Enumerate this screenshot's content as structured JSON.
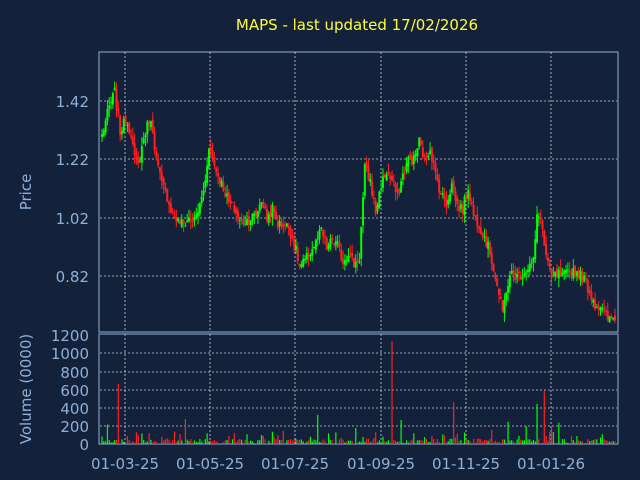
{
  "chart_data": [
    {
      "type": "candlestick",
      "title": "MAPS - last updated 17/02/2026",
      "ylabel": "Price",
      "ylim": [
        0.68,
        1.59
      ],
      "yticks": [
        "1.42",
        "1.22",
        "1.02",
        "0.82"
      ],
      "xticks": [
        "01-03-25",
        "01-05-25",
        "01-07-25",
        "01-09-25",
        "01-11-25",
        "01-01-26"
      ],
      "grid": true,
      "anchors": [
        [
          0,
          1.32
        ],
        [
          4,
          1.41
        ],
        [
          7,
          1.46
        ],
        [
          10,
          1.33
        ],
        [
          13,
          1.37
        ],
        [
          16,
          1.33
        ],
        [
          18,
          1.24
        ],
        [
          20,
          1.22
        ],
        [
          23,
          1.31
        ],
        [
          26,
          1.37
        ],
        [
          28,
          1.34
        ],
        [
          30,
          1.24
        ],
        [
          33,
          1.16
        ],
        [
          36,
          1.12
        ],
        [
          39,
          1.06
        ],
        [
          42,
          1.04
        ],
        [
          45,
          1.03
        ],
        [
          48,
          1.05
        ],
        [
          51,
          1.04
        ],
        [
          54,
          1.09
        ],
        [
          57,
          1.17
        ],
        [
          59,
          1.29
        ],
        [
          61,
          1.24
        ],
        [
          64,
          1.19
        ],
        [
          67,
          1.15
        ],
        [
          70,
          1.1
        ],
        [
          73,
          1.08
        ],
        [
          76,
          1.04
        ],
        [
          79,
          1.04
        ],
        [
          82,
          1.05
        ],
        [
          85,
          1.06
        ],
        [
          88,
          1.11
        ],
        [
          91,
          1.05
        ],
        [
          94,
          1.08
        ],
        [
          97,
          1.03
        ],
        [
          100,
          1.03
        ],
        [
          103,
          1.02
        ],
        [
          106,
          0.97
        ],
        [
          109,
          0.89
        ],
        [
          112,
          0.91
        ],
        [
          115,
          0.94
        ],
        [
          118,
          0.97
        ],
        [
          121,
          1.01
        ],
        [
          124,
          0.95
        ],
        [
          127,
          0.98
        ],
        [
          130,
          0.96
        ],
        [
          133,
          0.91
        ],
        [
          136,
          0.94
        ],
        [
          139,
          0.9
        ],
        [
          142,
          0.92
        ],
        [
          145,
          1.21
        ],
        [
          148,
          1.17
        ],
        [
          151,
          1.07
        ],
        [
          154,
          1.16
        ],
        [
          157,
          1.2
        ],
        [
          160,
          1.17
        ],
        [
          163,
          1.12
        ],
        [
          166,
          1.19
        ],
        [
          169,
          1.24
        ],
        [
          172,
          1.24
        ],
        [
          175,
          1.3
        ],
        [
          178,
          1.24
        ],
        [
          181,
          1.28
        ],
        [
          184,
          1.19
        ],
        [
          187,
          1.13
        ],
        [
          190,
          1.1
        ],
        [
          193,
          1.16
        ],
        [
          196,
          1.09
        ],
        [
          199,
          1.08
        ],
        [
          202,
          1.15
        ],
        [
          205,
          1.06
        ],
        [
          208,
          1.03
        ],
        [
          211,
          0.99
        ],
        [
          214,
          0.94
        ],
        [
          217,
          0.86
        ],
        [
          219,
          0.8
        ],
        [
          221,
          0.74
        ],
        [
          223,
          0.82
        ],
        [
          226,
          0.87
        ],
        [
          229,
          0.86
        ],
        [
          232,
          0.87
        ],
        [
          235,
          0.89
        ],
        [
          238,
          0.91
        ],
        [
          240,
          1.05
        ],
        [
          242,
          1.06
        ],
        [
          244,
          0.96
        ],
        [
          246,
          0.9
        ],
        [
          248,
          0.85
        ],
        [
          251,
          0.87
        ],
        [
          254,
          0.86
        ],
        [
          257,
          0.87
        ],
        [
          260,
          0.88
        ],
        [
          263,
          0.87
        ],
        [
          266,
          0.85
        ],
        [
          269,
          0.81
        ],
        [
          272,
          0.77
        ],
        [
          275,
          0.76
        ],
        [
          278,
          0.73
        ],
        [
          280,
          0.72
        ],
        [
          283,
          0.73
        ]
      ],
      "seed": 7,
      "up_color": "#00ff00",
      "down_color": "#ff2020"
    },
    {
      "type": "bar",
      "ylabel": "Volume (0000)",
      "ylim": [
        0,
        1240
      ],
      "yticks": [
        "1200",
        "1000",
        "800",
        "600",
        "400",
        "200",
        "0"
      ],
      "grid": true,
      "spikes": [
        [
          3,
          220
        ],
        [
          9,
          680
        ],
        [
          14,
          90
        ],
        [
          22,
          120
        ],
        [
          33,
          80
        ],
        [
          40,
          140
        ],
        [
          46,
          280
        ],
        [
          58,
          120
        ],
        [
          70,
          90
        ],
        [
          80,
          110
        ],
        [
          95,
          80
        ],
        [
          100,
          150
        ],
        [
          119,
          330
        ],
        [
          125,
          120
        ],
        [
          140,
          180
        ],
        [
          160,
          1160
        ],
        [
          165,
          270
        ],
        [
          172,
          120
        ],
        [
          188,
          110
        ],
        [
          194,
          470
        ],
        [
          200,
          130
        ],
        [
          215,
          160
        ],
        [
          224,
          250
        ],
        [
          234,
          200
        ],
        [
          240,
          450
        ],
        [
          244,
          600
        ],
        [
          248,
          200
        ],
        [
          252,
          240
        ],
        [
          262,
          90
        ],
        [
          276,
          110
        ]
      ],
      "base_range": [
        5,
        60
      ]
    }
  ]
}
